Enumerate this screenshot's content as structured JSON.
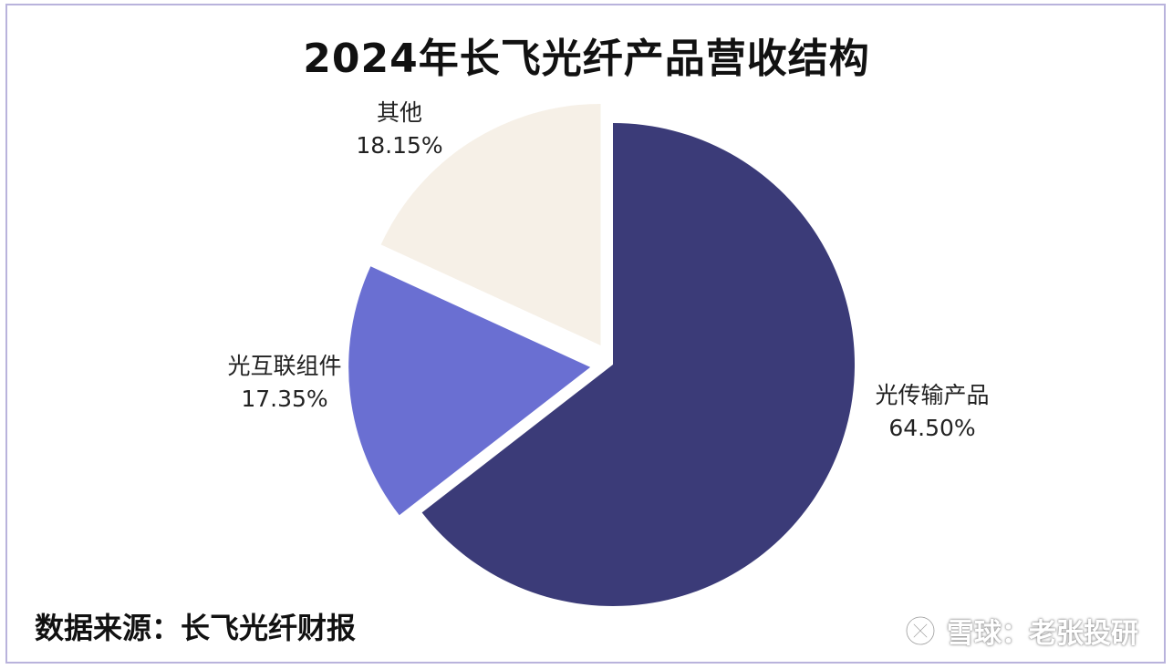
{
  "title": "2024年长飞光纤产品营收结构",
  "source": "数据来源：长飞光纤财报",
  "watermark": {
    "text": "雪球：老张投研",
    "logo_icon": "snowball-logo-icon"
  },
  "chart_data": {
    "type": "pie",
    "title": "2024年长飞光纤产品营收结构",
    "start_angle_deg": 0,
    "direction": "clockwise",
    "slices": [
      {
        "name": "光传输产品",
        "label": "光传输产品",
        "value": 64.5,
        "display": "64.50%",
        "color": "#3b3b78",
        "exploded": false
      },
      {
        "name": "光互联组件",
        "label": "光互联组件",
        "value": 17.35,
        "display": "17.35%",
        "color": "#6a6fd2",
        "exploded": true
      },
      {
        "name": "其他",
        "label": "其他",
        "value": 18.15,
        "display": "18.15%",
        "color": "#f6f0e7",
        "exploded": true
      }
    ]
  }
}
